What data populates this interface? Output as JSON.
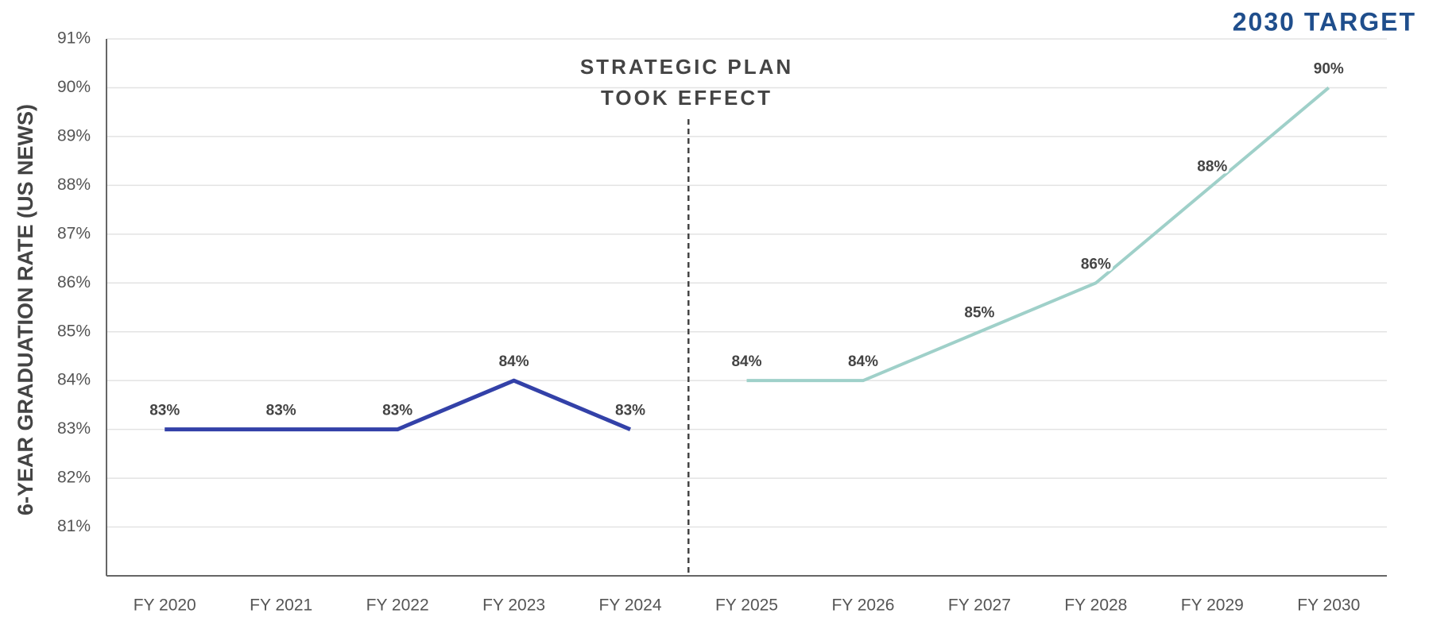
{
  "chart_data": {
    "type": "line",
    "title": "2030 TARGET",
    "y_label": "6-YEAR GRADUATION RATE (US NEWS)",
    "annotation": [
      "STRATEGIC PLAN",
      "TOOK EFFECT"
    ],
    "categories": [
      "FY 2020",
      "FY 2021",
      "FY 2022",
      "FY 2023",
      "FY 2024",
      "FY 2025",
      "FY 2026",
      "FY 2027",
      "FY 2028",
      "FY 2029",
      "FY 2030"
    ],
    "series": [
      {
        "color": "#3341a8",
        "values": [
          83,
          83,
          83,
          84,
          83,
          null,
          null,
          null,
          null,
          null,
          null
        ],
        "value_labels": [
          "83%",
          "83%",
          "83%",
          "84%",
          "83%",
          null,
          null,
          null,
          null,
          null,
          null
        ]
      },
      {
        "color": "#9fd0c9",
        "values": [
          null,
          null,
          null,
          null,
          null,
          84,
          84,
          85,
          86,
          88,
          90
        ],
        "value_labels": [
          null,
          null,
          null,
          null,
          null,
          "84%",
          "84%",
          "85%",
          "86%",
          "88%",
          "90%"
        ]
      }
    ],
    "ylim": [
      80,
      91
    ],
    "yticks": [
      {
        "value": 81,
        "label": "81%"
      },
      {
        "value": 82,
        "label": "82%"
      },
      {
        "value": 83,
        "label": "83%"
      },
      {
        "value": 84,
        "label": "84%"
      },
      {
        "value": 85,
        "label": "85%"
      },
      {
        "value": 86,
        "label": "86%"
      },
      {
        "value": 87,
        "label": "87%"
      },
      {
        "value": 88,
        "label": "88%"
      },
      {
        "value": 89,
        "label": "89%"
      },
      {
        "value": 90,
        "label": "90%"
      },
      {
        "value": 91,
        "label": "91%"
      }
    ],
    "grid": true
  }
}
